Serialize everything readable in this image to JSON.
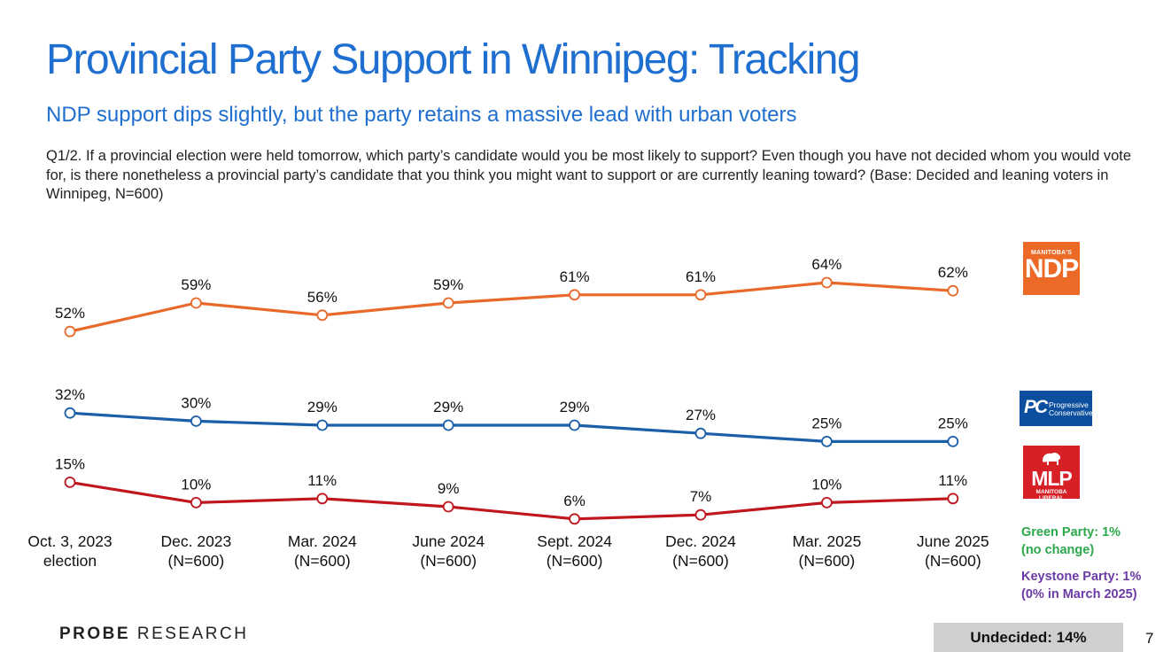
{
  "header": {
    "title": "Provincial Party Support in Winnipeg: Tracking",
    "subtitle": "NDP support dips slightly, but the party retains a massive lead with urban voters",
    "question": "Q1/2. If a provincial election were held tomorrow, which party’s candidate would you be most likely to support? Even though you have not decided whom you would vote for, is there nonetheless a provincial party’s candidate that you think you might want to support or are currently leaning toward? (Base: Decided and leaning voters in Winnipeg, N=600)"
  },
  "chart_data": {
    "type": "line",
    "title": "Provincial Party Support in Winnipeg: Tracking",
    "categories": [
      [
        "Oct. 3, 2023",
        "election"
      ],
      [
        "Dec. 2023",
        "(N=600)"
      ],
      [
        "Mar. 2024",
        "(N=600)"
      ],
      [
        "June 2024",
        "(N=600)"
      ],
      [
        "Sept. 2024",
        "(N=600)"
      ],
      [
        "Dec. 2024",
        "(N=600)"
      ],
      [
        "Mar. 2025",
        "(N=600)"
      ],
      [
        "June 2025",
        "(N=600)"
      ]
    ],
    "ylim": [
      0,
      70
    ],
    "unit": "%",
    "series": [
      {
        "name": "NDP",
        "color": "#e8692a",
        "values": [
          52,
          59,
          56,
          59,
          61,
          61,
          64,
          62
        ]
      },
      {
        "name": "PC",
        "color": "#1b5fa8",
        "values": [
          32,
          30,
          29,
          29,
          29,
          27,
          25,
          25
        ]
      },
      {
        "name": "Liberal",
        "color": "#c0161d",
        "values": [
          15,
          10,
          11,
          9,
          6,
          7,
          10,
          11
        ]
      }
    ]
  },
  "logos": {
    "ndp": {
      "small": "MANITOBA'S",
      "big": "NDP"
    },
    "pc": {
      "mark": "PC",
      "line1": "Progressive",
      "line2": "Conservative"
    },
    "mlp": {
      "big": "MLP",
      "small": "MANITOBA LIBERAL"
    }
  },
  "notes": {
    "green_line1": "Green Party: 1%",
    "green_line2": "(no change)",
    "keystone_line1": "Keystone Party: 1%",
    "keystone_line2": "(0% in March 2025)"
  },
  "undecided": "Undecided: 14%",
  "footer": {
    "brand_bold": "PROBE",
    "brand_rest": "RESEARCH",
    "page": "7"
  }
}
